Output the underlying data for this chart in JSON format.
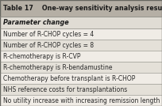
{
  "title": "Table 17    One-way sensitivity analysis results",
  "header": "Parameter change",
  "rows": [
    "Number of R-CHOP cycles = 4",
    "Number of R-CHOP cycles = 8",
    "R-chemotherapy is R-CVP",
    "R-chemotherapy is R-bendamustine",
    "Chemotherapy before transplant is R-CHOP",
    "NHS reference costs for transplantations",
    "No utility increase with increasing remission length"
  ],
  "title_bg": "#b5afa5",
  "header_bg": "#e0dcd4",
  "row_bg_even": "#f0ece6",
  "row_bg_odd": "#e4e0d8",
  "border_color": "#888880",
  "outer_border_color": "#666660",
  "title_fontsize": 5.8,
  "header_fontsize": 5.8,
  "row_fontsize": 5.5,
  "title_color": "#1a1a1a",
  "row_color": "#2a2a2a"
}
